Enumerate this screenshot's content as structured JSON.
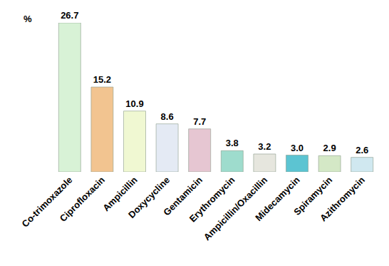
{
  "chart_data": {
    "type": "bar",
    "y_label": "%",
    "categories": [
      "Co-trimoxazole",
      "Ciprofloxacin",
      "Ampicillin",
      "Doxycycline",
      "Gentamicin",
      "Erythromycin",
      "Ampicillin/Oxacillin",
      "Midecamycin",
      "Spiramycin",
      "Azithromycin"
    ],
    "values": [
      26.7,
      15.2,
      10.9,
      8.6,
      7.7,
      3.8,
      3.2,
      3.0,
      2.9,
      2.6
    ],
    "value_labels": [
      "26.7",
      "15.2",
      "10.9",
      "8.6",
      "7.7",
      "3.8",
      "3.2",
      "3.0",
      "2.9",
      "2.6"
    ],
    "colors": [
      "#d8f2d6",
      "#f2c490",
      "#f0f8d2",
      "#e4eaf4",
      "#e6c6d2",
      "#9edccd",
      "#e6e6de",
      "#5cc4d2",
      "#d4e8c6",
      "#d0e8f0"
    ],
    "data_labels": true,
    "tick_labels": "x",
    "grid": false,
    "ylim": [
      0,
      26.7
    ]
  }
}
